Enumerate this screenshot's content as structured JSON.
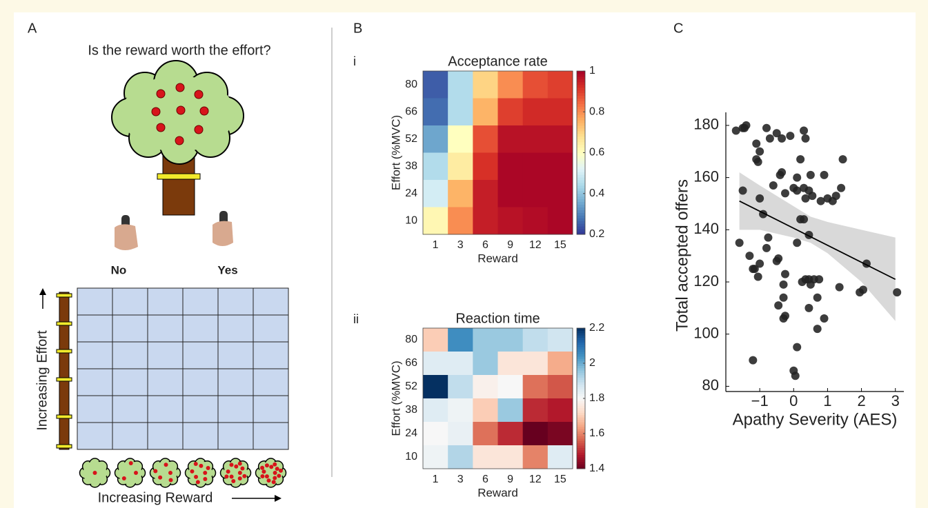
{
  "panel_labels": [
    "A",
    "B",
    "C"
  ],
  "sub_labels": [
    "i",
    "ii"
  ],
  "diagram": {
    "title": "Is the reward worth the effort?",
    "choice_no": "No",
    "choice_yes": "Yes",
    "effort_axis": "Increasing Effort",
    "reward_axis": "Increasing Reward"
  },
  "chart_data": [
    {
      "type": "heatmap",
      "title": "Acceptance rate",
      "x_label": "Reward",
      "y_label": "Effort (%MVC)",
      "x_categories": [
        1,
        3,
        6,
        9,
        12,
        15
      ],
      "y_categories": [
        80,
        66,
        52,
        38,
        24,
        10
      ],
      "z": [
        [
          0.25,
          0.45,
          0.7,
          0.8,
          0.88,
          0.9
        ],
        [
          0.27,
          0.45,
          0.75,
          0.9,
          0.93,
          0.93
        ],
        [
          0.35,
          0.6,
          0.88,
          0.97,
          0.97,
          0.97
        ],
        [
          0.45,
          0.65,
          0.92,
          0.99,
          0.99,
          0.99
        ],
        [
          0.5,
          0.75,
          0.95,
          0.99,
          0.99,
          0.99
        ],
        [
          0.62,
          0.8,
          0.95,
          0.97,
          0.98,
          0.99
        ]
      ],
      "zlim": [
        0.2,
        1
      ],
      "zticks": [
        0.2,
        0.4,
        0.6,
        0.8,
        1
      ],
      "colormap": "RdYlBu_r"
    },
    {
      "type": "heatmap",
      "title": "Reaction time",
      "x_label": "Reward",
      "y_label": "Effort (%MVC)",
      "x_categories": [
        1,
        3,
        6,
        9,
        12,
        15
      ],
      "y_categories": [
        80,
        66,
        52,
        38,
        24,
        10
      ],
      "z": [
        [
          1.7,
          2.05,
          1.95,
          1.95,
          1.9,
          1.88
        ],
        [
          1.85,
          1.85,
          1.95,
          1.75,
          1.75,
          1.65
        ],
        [
          2.2,
          1.9,
          1.78,
          1.8,
          1.58,
          1.55
        ],
        [
          1.85,
          1.82,
          1.7,
          1.95,
          1.5,
          1.48
        ],
        [
          1.8,
          1.83,
          1.58,
          1.5,
          1.4,
          1.42
        ],
        [
          1.82,
          1.92,
          1.75,
          1.75,
          1.6,
          1.85
        ]
      ],
      "zlim": [
        1.4,
        2.2
      ],
      "zticks": [
        1.4,
        1.6,
        1.8,
        2,
        2.2
      ],
      "colormap": "RdBu"
    },
    {
      "type": "scatter",
      "x_label": "Apathy Severity (AES)",
      "y_label": "Total accepted offers",
      "xlim": [
        -2,
        3.25
      ],
      "ylim": [
        78,
        185
      ],
      "xticks": [
        {
          "value": -1,
          "label": "−1"
        },
        0,
        1,
        2,
        3
      ],
      "yticks": [
        80,
        100,
        120,
        140,
        160,
        180
      ],
      "color": "#222222",
      "x": [
        -1.7,
        -1.5,
        -1.4,
        -1.45,
        -1.1,
        -1.0,
        -1.1,
        -1.05,
        -0.8,
        -0.7,
        -0.5,
        -0.35,
        -0.1,
        0.3,
        0.35,
        0.5,
        0.2,
        0.1,
        -0.4,
        -0.35,
        -0.6,
        -0.25,
        0.0,
        0.1,
        0.3,
        0.35,
        0.45,
        0.55,
        0.8,
        1.0,
        1.15,
        1.25,
        1.4,
        1.45,
        0.9,
        -1.5,
        -0.9,
        -1.0,
        0.2,
        0.3,
        0.45,
        0.1,
        -1.6,
        -1.3,
        -0.8,
        -0.75,
        -0.5,
        -0.45,
        -1.2,
        -1.15,
        -1.05,
        -1.0,
        -0.3,
        -0.25,
        0.25,
        0.35,
        0.45,
        0.6,
        0.75,
        0.5,
        0.7,
        -0.3,
        -0.45,
        -0.25,
        -0.3,
        0.45,
        0.7,
        0.9,
        1.35,
        1.95,
        2.05,
        2.15,
        3.05,
        -1.2,
        0.1,
        0.0,
        0.05
      ],
      "y": [
        178,
        179,
        180,
        179,
        173,
        170,
        167,
        166,
        179,
        175,
        177,
        175,
        176,
        178,
        175,
        161,
        167,
        160,
        161,
        162,
        157,
        154,
        156,
        155,
        156,
        152,
        155,
        153,
        151,
        152,
        151,
        153,
        156,
        167,
        161,
        155,
        146,
        152,
        144,
        144,
        138,
        135,
        135,
        130,
        133,
        137,
        128,
        129,
        125,
        125,
        122,
        127,
        119,
        123,
        120,
        121,
        121,
        121,
        121,
        119,
        114,
        114,
        111,
        107,
        106,
        110,
        102,
        106,
        118,
        116,
        117,
        127,
        116,
        90,
        95,
        86,
        84
      ],
      "fit": {
        "x": [
          -1.6,
          3
        ],
        "y": [
          151,
          121
        ],
        "color": "#000000"
      },
      "band": {
        "x": [
          -1.6,
          -1,
          0,
          0.5,
          1,
          2,
          3
        ],
        "upper": [
          162,
          157,
          149,
          145,
          143,
          140,
          137
        ],
        "lower": [
          140,
          140,
          137,
          135,
          131,
          120,
          105
        ],
        "color": "#d9d9d9"
      }
    }
  ]
}
